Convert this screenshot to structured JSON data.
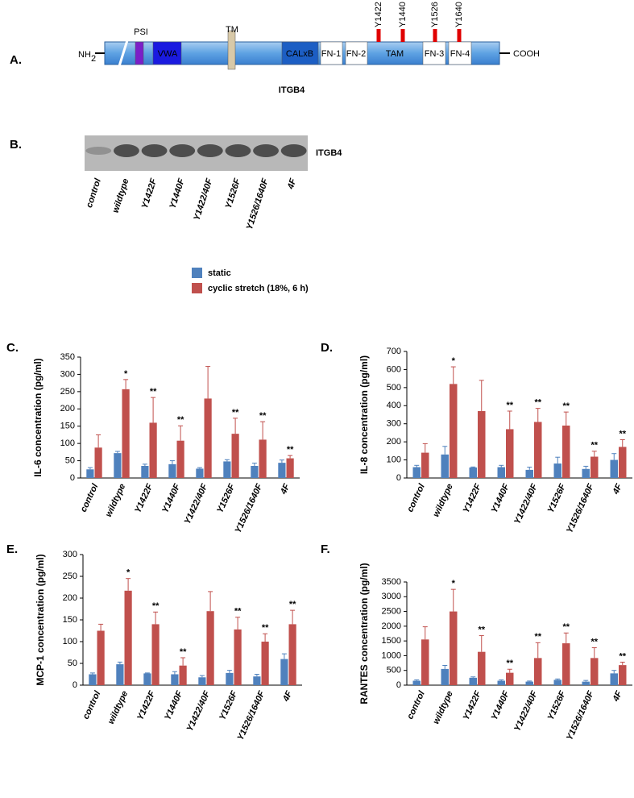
{
  "diagram": {
    "label": "A.",
    "nterm": "NH",
    "nterm_sub": "2",
    "cterm": "COOH",
    "title": "ITGB4",
    "domains": [
      "PSI",
      "VWA",
      "TM",
      "CALxB",
      "FN-1",
      "FN-2",
      "TAM",
      "FN-3",
      "FN-4"
    ],
    "sites": [
      "Y1422",
      "Y1440",
      "Y1526",
      "Y1640"
    ]
  },
  "blot": {
    "label": "B.",
    "band_label": "ITGB4",
    "lanes": [
      "control",
      "wildtype",
      "Y1422F",
      "Y1440F",
      "Y1422/40F",
      "Y1526F",
      "Y1526/1640F",
      "4F"
    ]
  },
  "legend": [
    {
      "name": "static",
      "color": "#4f81bd"
    },
    {
      "name": "cyclic stretch (18%, 6 h)",
      "color": "#c0504d"
    }
  ],
  "chart_data": [
    {
      "type": "bar",
      "panel": "C.",
      "y_label": "IL-6 concentration (pg/ml)",
      "categories": [
        "control",
        "wildtype",
        "Y1422F",
        "Y1440F",
        "Y1422/40F",
        "Y1526F",
        "Y1526/1640F",
        "4F"
      ],
      "series": [
        {
          "values": [
            25,
            72,
            35,
            40,
            27,
            48,
            35,
            44
          ],
          "errors": [
            5,
            5,
            5,
            10,
            3,
            5,
            8,
            8
          ]
        },
        {
          "values": [
            88,
            257,
            160,
            108,
            230,
            128,
            111,
            57
          ],
          "errors": [
            37,
            28,
            73,
            43,
            93,
            45,
            52,
            8
          ]
        }
      ],
      "annotations": [
        null,
        "*",
        "**",
        "**",
        null,
        "**",
        "**",
        "**"
      ],
      "ylim": [
        0,
        350
      ],
      "yticks": [
        0,
        50,
        100,
        150,
        200,
        250,
        300,
        350
      ]
    },
    {
      "type": "bar",
      "panel": "D.",
      "y_label": "IL-8 concentration (pg/ml)",
      "categories": [
        "control",
        "wildtype",
        "Y1422F",
        "Y1440F",
        "Y1422/40F",
        "Y1526F",
        "Y1526/1640F",
        "4F"
      ],
      "series": [
        {
          "values": [
            60,
            130,
            58,
            60,
            45,
            80,
            50,
            100
          ],
          "errors": [
            10,
            45,
            3,
            10,
            15,
            35,
            15,
            35
          ]
        },
        {
          "values": [
            140,
            520,
            370,
            270,
            310,
            290,
            118,
            172
          ],
          "errors": [
            50,
            95,
            170,
            100,
            75,
            75,
            30,
            40
          ]
        }
      ],
      "annotations": [
        null,
        "*",
        null,
        "**",
        "**",
        "**",
        "**",
        "**"
      ],
      "ylim": [
        0,
        700
      ],
      "yticks": [
        0,
        100,
        200,
        300,
        400,
        500,
        600,
        700
      ]
    },
    {
      "type": "bar",
      "panel": "E.",
      "y_label": "MCP-1 concentration (pg/ml)",
      "categories": [
        "control",
        "wildtype",
        "Y1422F",
        "Y1440F",
        "Y1422/40F",
        "Y1526F",
        "Y1526/1640F",
        "4F"
      ],
      "series": [
        {
          "values": [
            25,
            48,
            27,
            25,
            18,
            28,
            20,
            60
          ],
          "errors": [
            3,
            5,
            1,
            6,
            4,
            6,
            5,
            12
          ]
        },
        {
          "values": [
            125,
            217,
            140,
            45,
            170,
            128,
            100,
            140
          ],
          "errors": [
            15,
            28,
            28,
            18,
            45,
            28,
            18,
            32
          ]
        }
      ],
      "annotations": [
        null,
        "*",
        "**",
        "**",
        null,
        "**",
        "**",
        "**"
      ],
      "ylim": [
        0,
        300
      ],
      "yticks": [
        0,
        50,
        100,
        150,
        200,
        250,
        300
      ]
    },
    {
      "type": "bar",
      "panel": "F.",
      "y_label": "RANTES concentration (pg/ml)",
      "categories": [
        "control",
        "wildtype",
        "Y1422F",
        "Y1440F",
        "Y1422/40F",
        "Y1526F",
        "Y1526/1640F",
        "4F"
      ],
      "series": [
        {
          "values": [
            150,
            550,
            250,
            150,
            120,
            180,
            120,
            400
          ],
          "errors": [
            30,
            120,
            30,
            30,
            20,
            30,
            40,
            100
          ]
        },
        {
          "values": [
            1550,
            2500,
            1130,
            420,
            920,
            1420,
            920,
            680
          ],
          "errors": [
            430,
            750,
            550,
            120,
            520,
            350,
            350,
            100
          ]
        }
      ],
      "annotations": [
        null,
        "*",
        "**",
        "**",
        "**",
        "**",
        "**",
        "**"
      ],
      "ylim": [
        0,
        3500
      ],
      "yticks": [
        0,
        500,
        1000,
        1500,
        2000,
        2500,
        3000,
        3500
      ]
    }
  ]
}
